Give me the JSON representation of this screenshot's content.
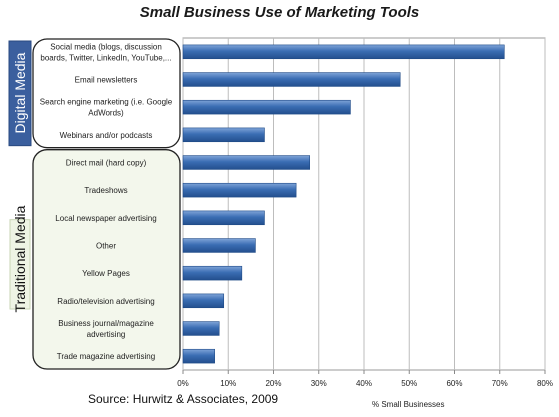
{
  "chart_data": {
    "type": "bar",
    "orientation": "horizontal",
    "title": "Small Business Use of Marketing Tools",
    "xlabel": "% Small Businesses",
    "source": "Source: Hurwitz & Associates, 2009",
    "xlim": [
      0,
      80
    ],
    "xticks": [
      "0%",
      "10%",
      "20%",
      "30%",
      "40%",
      "50%",
      "60%",
      "70%",
      "80%"
    ],
    "grid": true,
    "bar_color": "#3a6db3",
    "groups": [
      {
        "name": "Digital Media",
        "color": "#3b5f9e",
        "start": 0,
        "end": 3
      },
      {
        "name": "Traditional Media",
        "color": "#eef4e4",
        "start": 4,
        "end": 11
      }
    ],
    "categories": [
      [
        "Social media (blogs, discussion",
        "boards, Twitter, LinkedIn, YouTube,..."
      ],
      [
        "Email newsletters"
      ],
      [
        "Search engine marketing (i.e. Google",
        "AdWords)"
      ],
      [
        "Webinars and/or podcasts"
      ],
      [
        "Direct mail (hard copy)"
      ],
      [
        "Tradeshows"
      ],
      [
        "Local newspaper advertising"
      ],
      [
        "Other"
      ],
      [
        "Yellow Pages"
      ],
      [
        "Radio/television advertising"
      ],
      [
        "Business journal/magazine",
        "advertising"
      ],
      [
        "Trade magazine advertising"
      ]
    ],
    "values": [
      71,
      48,
      37,
      18,
      28,
      25,
      18,
      16,
      13,
      9,
      8,
      7
    ]
  }
}
